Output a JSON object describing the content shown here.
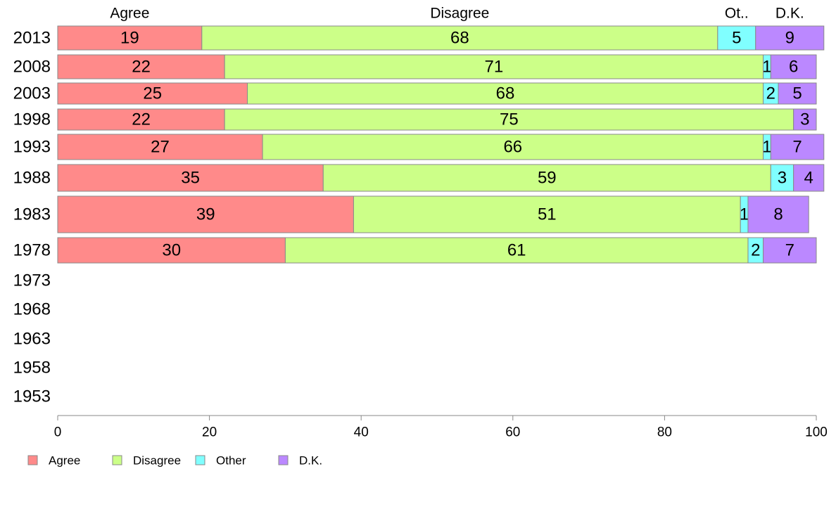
{
  "chart_data": {
    "type": "bar",
    "orientation": "horizontal",
    "stacked": true,
    "categories": [
      "2013",
      "2008",
      "2003",
      "1998",
      "1993",
      "1988",
      "1983",
      "1978",
      "1973",
      "1968",
      "1963",
      "1958",
      "1953"
    ],
    "series": [
      {
        "name": "Agree",
        "color": "#ff8a8a",
        "values": [
          19,
          22,
          25,
          22,
          27,
          35,
          39,
          30,
          null,
          null,
          null,
          null,
          null
        ]
      },
      {
        "name": "Disagree",
        "color": "#ccff88",
        "values": [
          68,
          71,
          68,
          75,
          66,
          59,
          51,
          61,
          null,
          null,
          null,
          null,
          null
        ]
      },
      {
        "name": "Other",
        "color": "#80ffff",
        "values": [
          5,
          1,
          2,
          0,
          1,
          3,
          1,
          2,
          null,
          null,
          null,
          null,
          null
        ]
      },
      {
        "name": "D.K.",
        "color": "#bb88ff",
        "values": [
          9,
          6,
          5,
          3,
          7,
          4,
          8,
          7,
          null,
          null,
          null,
          null,
          null
        ]
      }
    ],
    "segment_labels": [
      [
        "19",
        "68",
        "5",
        "9"
      ],
      [
        "22",
        "71",
        "1",
        "6"
      ],
      [
        "25",
        "68",
        "2",
        "5"
      ],
      [
        "22",
        "75",
        "",
        "3"
      ],
      [
        "27",
        "66",
        "1",
        "7"
      ],
      [
        "35",
        "59",
        "3",
        "4"
      ],
      [
        "39",
        "51",
        "1",
        "8"
      ],
      [
        "30",
        "61",
        "2",
        "7"
      ]
    ],
    "column_headers": [
      "Agree",
      "Disagree",
      "Ot..",
      "D.K."
    ],
    "xlim": [
      0,
      100
    ],
    "xticks": [
      0,
      20,
      40,
      60,
      80,
      100
    ],
    "grid": false,
    "legend_position": "bottom-left"
  }
}
